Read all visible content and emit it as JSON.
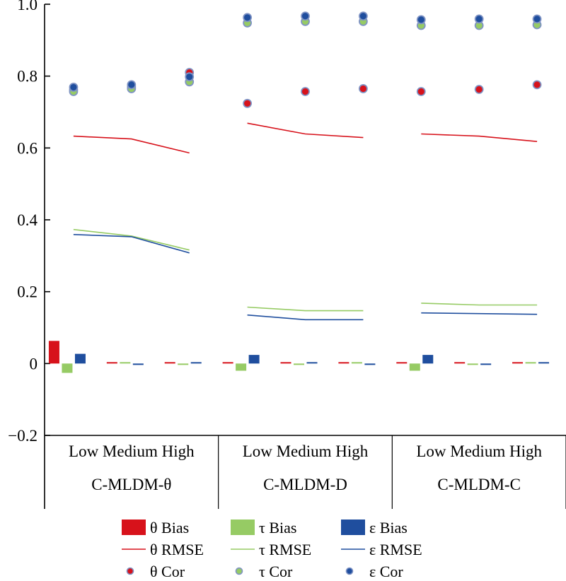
{
  "chart_data": {
    "type": "bar",
    "title": "",
    "xlabel": "",
    "ylabel": "",
    "ylim": [
      -0.2,
      1.0
    ],
    "yticks": [
      1.0,
      0.8,
      0.6,
      0.4,
      0.2,
      0,
      -0.2
    ],
    "ytick_labels": [
      "1.0",
      "0.8",
      "0.6",
      "0.4",
      "0.2",
      "0",
      "−0.2"
    ],
    "grid": false,
    "groups": [
      {
        "name": "C-MLDM-θ",
        "categories": [
          "Low",
          "Medium",
          "High"
        ]
      },
      {
        "name": "C-MLDM-D",
        "categories": [
          "Low",
          "Medium",
          "High"
        ]
      },
      {
        "name": "C-MLDM-C",
        "categories": [
          "Low",
          "Medium",
          "High"
        ]
      }
    ],
    "category_row_labels": [
      "Low Medium High",
      "Low Medium High",
      "Low Medium High"
    ],
    "legend_position": "bottom",
    "series": [
      {
        "name": "θ Bias",
        "kind": "bar",
        "color": "#d7121b",
        "values": [
          0.063,
          0.003,
          0.003,
          0.003,
          0.003,
          0.003,
          0.003,
          0.003,
          0.003
        ]
      },
      {
        "name": "τ Bias",
        "kind": "bar",
        "color": "#96cb64",
        "values": [
          -0.026,
          0.003,
          -0.003,
          -0.02,
          -0.002,
          0.003,
          -0.02,
          -0.002,
          0.0
        ]
      },
      {
        "name": "ε Bias",
        "kind": "bar",
        "color": "#1f4e9e",
        "values": [
          0.027,
          -0.003,
          0.003,
          0.024,
          0.0,
          -0.003,
          0.024,
          -0.003,
          0.0
        ]
      },
      {
        "name": "θ RMSE",
        "kind": "line",
        "color": "#d7121b",
        "values": [
          0.633,
          0.625,
          0.586,
          0.669,
          0.639,
          0.629,
          0.639,
          0.633,
          0.618
        ]
      },
      {
        "name": "τ RMSE",
        "kind": "line",
        "color": "#96cb64",
        "values": [
          0.373,
          0.355,
          0.316,
          0.157,
          0.147,
          0.147,
          0.168,
          0.163,
          0.163
        ]
      },
      {
        "name": "ε RMSE",
        "kind": "line",
        "color": "#1f4e9e",
        "values": [
          0.359,
          0.353,
          0.308,
          0.135,
          0.122,
          0.122,
          0.141,
          0.139,
          0.137
        ]
      },
      {
        "name": "θ Cor",
        "kind": "scatter",
        "color": "#d7121b",
        "values": [
          0.762,
          0.77,
          0.81,
          0.724,
          0.757,
          0.765,
          0.757,
          0.763,
          0.776
        ]
      },
      {
        "name": "τ Cor",
        "kind": "scatter",
        "color": "#96cb64",
        "values": [
          0.757,
          0.765,
          0.784,
          0.948,
          0.952,
          0.952,
          0.941,
          0.941,
          0.943
        ]
      },
      {
        "name": "ε Cor",
        "kind": "scatter",
        "color": "#1f4e9e",
        "values": [
          0.769,
          0.776,
          0.798,
          0.963,
          0.967,
          0.967,
          0.957,
          0.959,
          0.959
        ]
      }
    ]
  }
}
